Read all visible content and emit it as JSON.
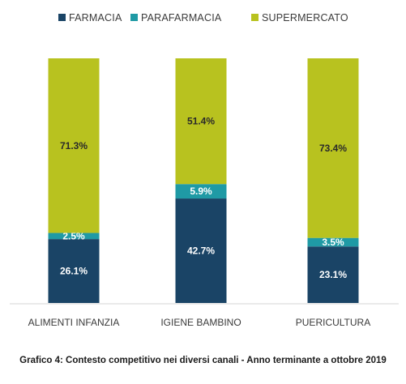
{
  "chart_data": {
    "type": "bar",
    "stacked": true,
    "normalized_percent": true,
    "categories": [
      "ALIMENTI INFANZIA",
      "IGIENE BAMBINO",
      "PUERICULTURA"
    ],
    "series": [
      {
        "name": "FARMACIA",
        "color": "#1a4466",
        "values": [
          26.1,
          42.7,
          23.1
        ],
        "labels": [
          "26.1%",
          "42.7%",
          "23.1%"
        ]
      },
      {
        "name": "PARAFARMACIA",
        "color": "#1f9aa5",
        "values": [
          2.5,
          5.9,
          3.5
        ],
        "labels": [
          "2.5%",
          "5.9%",
          "3.5%"
        ]
      },
      {
        "name": "SUPERMERCATO",
        "color": "#b8c21f",
        "values": [
          71.3,
          51.4,
          73.4
        ],
        "labels": [
          "71.3%",
          "51.4%",
          "73.4%"
        ]
      }
    ],
    "legend_position": "top",
    "grid": false,
    "ylim": [
      0,
      100
    ]
  },
  "caption": "Grafico 4: Contesto competitivo nei diversi canali - Anno terminante a ottobre 2019"
}
